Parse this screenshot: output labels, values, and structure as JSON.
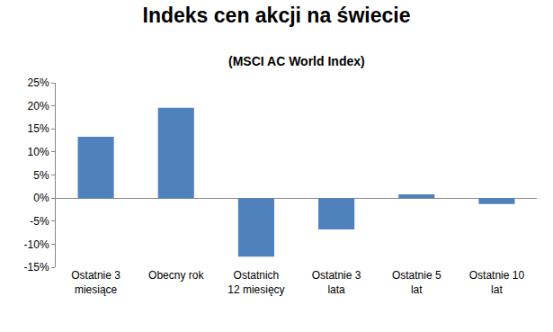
{
  "chart_data": {
    "type": "bar",
    "title": "Indeks cen akcji na świecie",
    "subtitle": "(MSCI AC World Index)",
    "categories": [
      "Ostatnie 3 miesiące",
      "Obecny rok",
      "Ostatnich 12 miesięcy",
      "Ostatnie 3 lata",
      "Ostatnie 5 lat",
      "Ostatnie 10 lat"
    ],
    "values": [
      13.3,
      19.6,
      -12.7,
      -6.8,
      0.8,
      -1.3
    ],
    "color": "#4f81bd",
    "ylim": [
      -15,
      25
    ],
    "yticks": [
      {
        "value": -15,
        "label": "-15%"
      },
      {
        "value": -10,
        "label": "-10%"
      },
      {
        "value": -5,
        "label": "-5%"
      },
      {
        "value": 0,
        "label": "0%"
      },
      {
        "value": 5,
        "label": "5%"
      },
      {
        "value": 10,
        "label": "10%"
      },
      {
        "value": 15,
        "label": "15%"
      },
      {
        "value": 20,
        "label": "20%"
      },
      {
        "value": 25,
        "label": "25%"
      }
    ],
    "grid": false
  }
}
